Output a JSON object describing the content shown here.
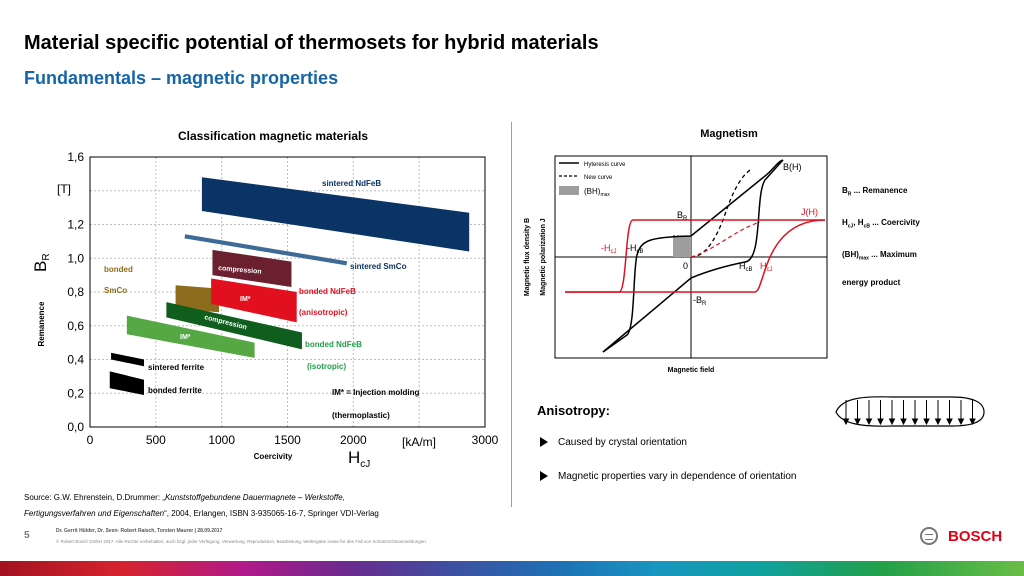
{
  "header": {
    "title": "Material specific potential of thermosets for hybrid materials",
    "subtitle": "Fundamentals – magnetic properties"
  },
  "chart_data": [
    {
      "type": "area",
      "title": "Classification magnetic materials",
      "xlabel": "Coercivity",
      "xsymbol": "H",
      "xsymbol_sub": "cJ",
      "xunit": "[kA/m]",
      "ylabel": "Remanence",
      "ysymbol": "B",
      "ysymbol_sub": "R",
      "yunit": "[T]",
      "xlim": [
        0,
        3000
      ],
      "ylim": [
        0,
        1.6
      ],
      "xticks": [
        "0",
        "500",
        "1000",
        "1500",
        "2000",
        "3000"
      ],
      "yticks": [
        "0,0",
        "0,2",
        "0,4",
        "0,6",
        "0,8",
        "1,0",
        "1,2",
        "1,6"
      ],
      "grid": true,
      "regions": [
        {
          "name": "sintered NdFeB",
          "color": "#0b3466",
          "polygon": [
            [
              850,
              1.48
            ],
            [
              2880,
              1.27
            ],
            [
              2880,
              1.04
            ],
            [
              850,
              1.28
            ]
          ]
        },
        {
          "name": "sintered SmCo",
          "color": "#3d6a97",
          "line": [
            [
              720,
              1.13
            ],
            [
              1950,
              0.97
            ]
          ],
          "width_value": 0.025
        },
        {
          "name": "bonded SmCo",
          "color": "#8d6b1c",
          "polygon": [
            [
              650,
              0.84
            ],
            [
              980,
              0.82
            ],
            [
              980,
              0.68
            ],
            [
              650,
              0.7
            ]
          ]
        },
        {
          "name": "compression",
          "color": "#6b2030",
          "polygon": [
            [
              930,
              1.05
            ],
            [
              1530,
              0.98
            ],
            [
              1530,
              0.83
            ],
            [
              930,
              0.9
            ]
          ]
        },
        {
          "name": "IM*",
          "color": "#e2101f",
          "polygon": [
            [
              920,
              0.88
            ],
            [
              1570,
              0.8
            ],
            [
              1570,
              0.62
            ],
            [
              920,
              0.73
            ]
          ]
        },
        {
          "name": "compression",
          "color": "#0f5e1e",
          "polygon": [
            [
              580,
              0.74
            ],
            [
              1610,
              0.56
            ],
            [
              1610,
              0.46
            ],
            [
              580,
              0.65
            ]
          ]
        },
        {
          "name": "IM*",
          "color": "#56a845",
          "polygon": [
            [
              280,
              0.66
            ],
            [
              1250,
              0.5
            ],
            [
              1250,
              0.41
            ],
            [
              280,
              0.55
            ]
          ]
        },
        {
          "name": "sintered ferrite",
          "color": "#000000",
          "polygon": [
            [
              160,
              0.44
            ],
            [
              410,
              0.4
            ],
            [
              410,
              0.36
            ],
            [
              160,
              0.4
            ]
          ]
        },
        {
          "name": "bonded ferrite",
          "color": "#000000",
          "polygon": [
            [
              150,
              0.33
            ],
            [
              410,
              0.28
            ],
            [
              410,
              0.19
            ],
            [
              150,
              0.23
            ]
          ]
        }
      ],
      "labels": {
        "sintered_ndfeb": "sintered NdFeB",
        "sintered_smco": "sintered  SmCo",
        "bonded": "bonded",
        "smco": "SmCo",
        "compression_1": "compression",
        "im_1": "IM*",
        "bonded_ndfeb": "bonded NdFeB",
        "anisotropic": "(anisotropic)",
        "compression_2": "compression",
        "im_2": "IM*",
        "bonded_ndfeb_2": "bonded  NdFeB",
        "isotropic": "(isotropic)",
        "sintered_ferrite": "sintered ferrite",
        "bonded_ferrite": "bonded ferrite",
        "im_note": "IM* = Injection molding",
        "thermoplastic": "(thermoplastic)"
      }
    },
    {
      "type": "line",
      "title": "Magnetism",
      "xlabel": "Magnetic field",
      "ylabel_1": "Magnetic flux density B",
      "ylabel_2": "Magnetic polarization  J",
      "series": [
        {
          "name": "Hyteresis curve",
          "color": "#000000",
          "style": "solid"
        },
        {
          "name": "New curve",
          "color": "#000000",
          "style": "dashed"
        },
        {
          "name": "J(H)",
          "color": "#e2101f",
          "style": "solid"
        },
        {
          "name": "B(H)",
          "color": "#000000",
          "style": "solid"
        }
      ],
      "bh_legend": "(BH)",
      "bh_legend_sub": "max",
      "annotations": {
        "br": "B",
        "br_sub": "R",
        "neg_br": "-B",
        "neg_br_sub": "R",
        "neg_hcj": "-H",
        "neg_hcj_sub": "cJ",
        "neg_hcb": "-H",
        "neg_hcb_sub": "cB",
        "hcb": "H",
        "hcb_sub": "cB",
        "hcj": "H",
        "hcj_sub": "cJ",
        "zero": "0",
        "bh_curve": "B(H)",
        "jh_curve": "J(H)"
      }
    }
  ],
  "definitions": {
    "br": {
      "sym": "B",
      "sub": "R",
      "text": " ... Remanence"
    },
    "hc": {
      "sym": "H",
      "sub": "cJ",
      "mid": ", H",
      "sub2": "cB",
      "text": " ... Coercivity"
    },
    "bhmax": {
      "sym": "(BH)",
      "sub": "max",
      "text": " ... Maximum",
      "line2": "energy product"
    }
  },
  "anisotropy": {
    "title": "Anisotropy:",
    "bullets": [
      "Caused by crystal orientation",
      "Magnetic properties vary in dependence of orientation"
    ]
  },
  "source": {
    "prefix": "Source: G.W. Ehrenstein, D.Drummer: „",
    "title_italic": "Kunststoffgebundene Dauermagnete – Werkstoffe,",
    "line2_italic": "Fertigungsverfahren und Eigenschaften",
    "line2_rest": "“, 2004, Erlangen, ISBN 3-935065-16-7, Springer VDI-Verlag"
  },
  "footer": {
    "page": "5",
    "authors": "Dr. Gerrit Hülder, Dr. Sven- Robert Raisch, Torsten Maurer | 28.09.2017",
    "copyright": "© Robert Bosch GmbH 2017. Alle Rechte vorbehalten, auch bzgl. jeder Verfügung, Verwertung, Reproduktion, Bearbeitung, Weitergabe sowie für den Fall von Schutzrechtsanmeldungen.",
    "brand": "BOSCH"
  }
}
